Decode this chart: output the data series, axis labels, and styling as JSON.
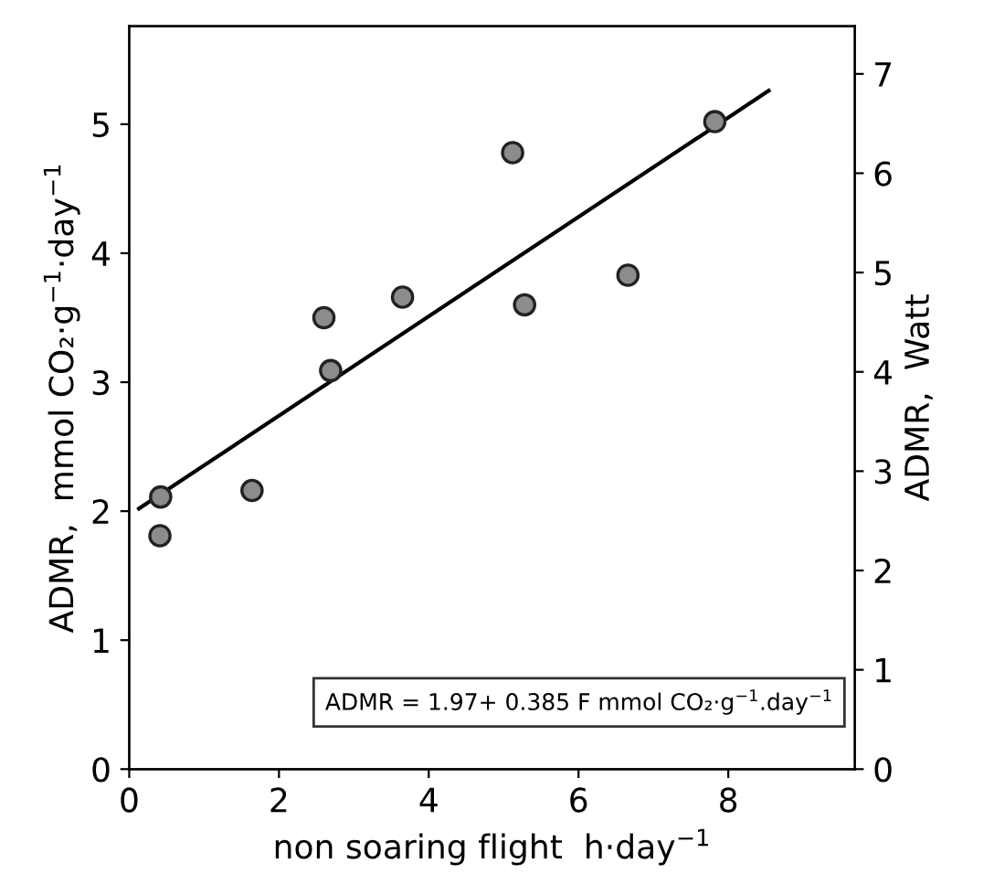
{
  "chart_data": {
    "type": "scatter",
    "xlabel": "non soaring flight  h·day$^{−1}$",
    "ylabel": "ADMR,  mmol CO₂·g$^{−1}$·day$^{−1}$",
    "y2label": "ADMR,  Watt",
    "annotations": [
      "ADMR = 1.97+ 0.385 F mmol CO₂·g$^{−1}$.day$^{−1}$"
    ],
    "xlim": [
      0,
      9.69
    ],
    "xticks": [
      0,
      2,
      4,
      6,
      8
    ],
    "ylim": [
      0,
      5.76
    ],
    "yticks": [
      0,
      1,
      2,
      3,
      4,
      5
    ],
    "y2lim": [
      0,
      7.48
    ],
    "y2ticks": [
      0,
      1,
      2,
      3,
      4,
      5,
      6,
      7
    ],
    "grid": false,
    "legend": false,
    "series": [
      {
        "marker": "circle",
        "color": "#8c8c8c",
        "x": [
          0.42,
          0.41,
          1.64,
          2.6,
          2.69,
          3.65,
          5.12,
          5.28,
          6.66,
          7.82
        ],
        "values": [
          2.11,
          1.81,
          2.16,
          3.5,
          3.09,
          3.66,
          4.78,
          3.6,
          3.83,
          5.02
        ]
      },
      {
        "type": "line",
        "marker": "none",
        "line_style": "solid",
        "color": "#000000",
        "x": [
          0.13,
          8.54
        ],
        "values": [
          2.02,
          5.26
        ]
      }
    ]
  }
}
